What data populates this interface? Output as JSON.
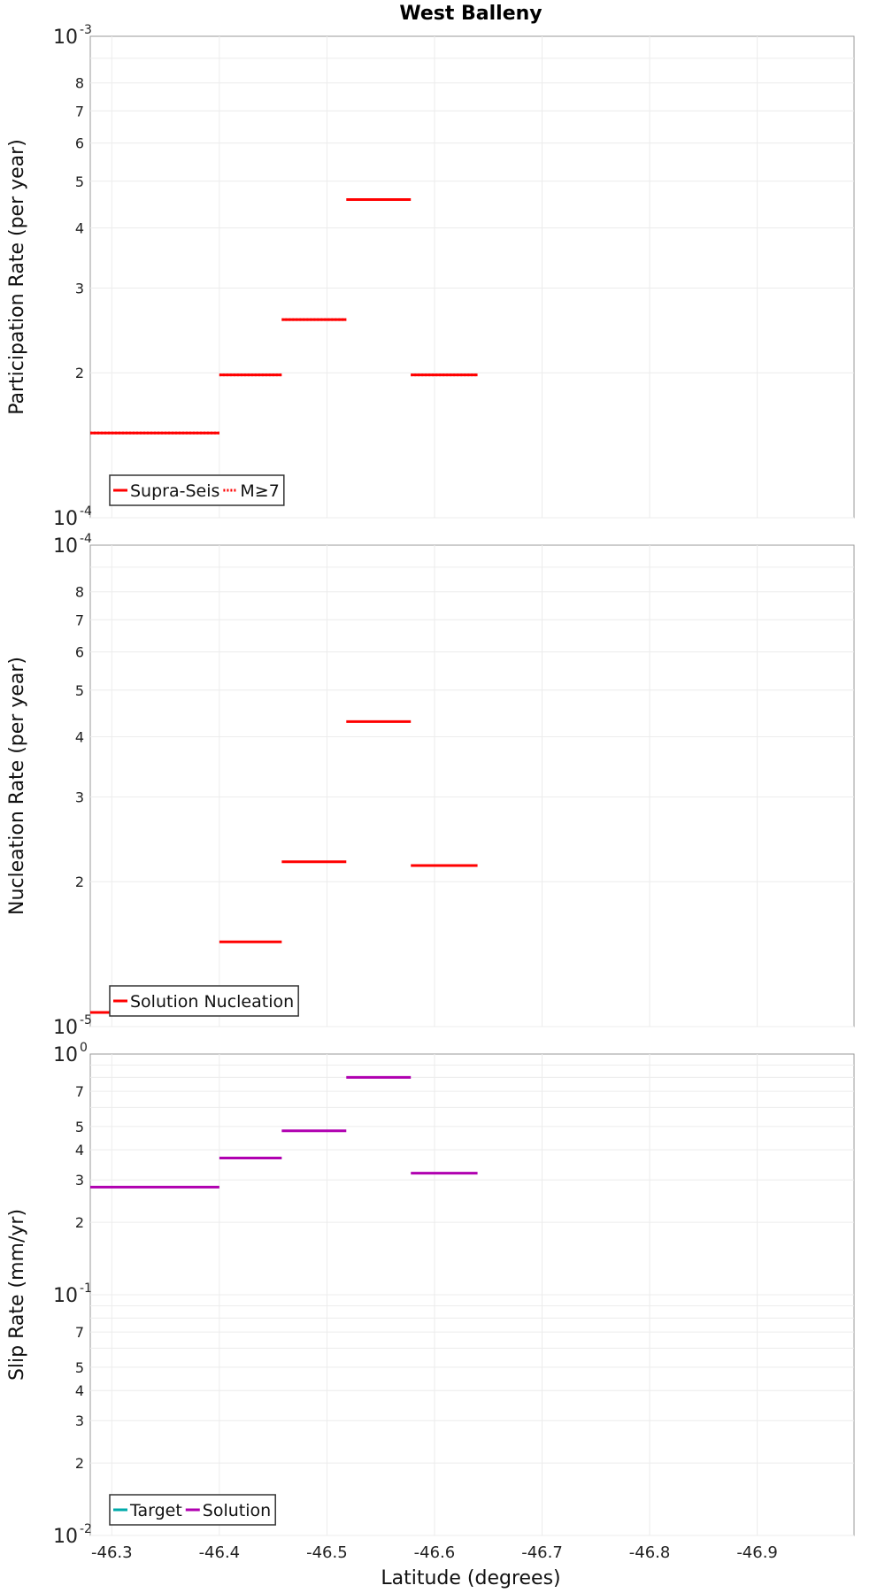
{
  "chart_data": {
    "title": "West Balleny",
    "xlabel": "Latitude (degrees)",
    "x_axis": {
      "range": [
        -46.28,
        -46.99
      ],
      "ticks": [
        -46.3,
        -46.4,
        -46.5,
        -46.6,
        -46.7,
        -46.8,
        -46.9
      ],
      "tick_labels": [
        "-46.3",
        "-46.4",
        "-46.5",
        "-46.6",
        "-46.7",
        "-46.8",
        "-46.9"
      ]
    },
    "panels": [
      {
        "id": "participation",
        "type": "line",
        "ylabel": "Participation Rate (per year)",
        "yscale": "log",
        "ylim": [
          0.0001,
          0.001
        ],
        "major_ticks": [
          {
            "base": "10",
            "exp": "-4"
          },
          {
            "base": "10",
            "exp": "-3"
          }
        ],
        "minor_tick_labels": [
          "2",
          "3",
          "4",
          "5",
          "6",
          "7",
          "8"
        ],
        "segments_x": [
          [
            -46.28,
            -46.4
          ],
          [
            -46.4,
            -46.458
          ],
          [
            -46.458,
            -46.518
          ],
          [
            -46.518,
            -46.578
          ],
          [
            -46.578,
            -46.64
          ]
        ],
        "series": [
          {
            "name": "Supra-Seis",
            "color": "#ff0000",
            "style": "solid",
            "values": [
              0.00015,
              0.000198,
              0.000258,
              0.000458,
              0.000198
            ]
          },
          {
            "name": "M≥7",
            "color": "#ff0000",
            "style": "dotted",
            "values": [
              0.00015,
              0.000198,
              0.000258,
              null,
              0.000198
            ]
          }
        ],
        "legend": [
          "Supra-Seis",
          "M≥7"
        ]
      },
      {
        "id": "nucleation",
        "type": "line",
        "ylabel": "Nucleation Rate (per year)",
        "yscale": "log",
        "ylim": [
          1e-05,
          0.0001
        ],
        "major_ticks": [
          {
            "base": "10",
            "exp": "-5"
          },
          {
            "base": "10",
            "exp": "-4"
          }
        ],
        "minor_tick_labels": [
          "2",
          "3",
          "4",
          "5",
          "6",
          "7",
          "8"
        ],
        "segments_x": [
          [
            -46.28,
            -46.4
          ],
          [
            -46.4,
            -46.458
          ],
          [
            -46.458,
            -46.518
          ],
          [
            -46.518,
            -46.578
          ],
          [
            -46.578,
            -46.64
          ]
        ],
        "series": [
          {
            "name": "Solution Nucleation",
            "color": "#ff0000",
            "style": "solid",
            "values": [
              1.07e-05,
              1.5e-05,
              2.2e-05,
              4.3e-05,
              2.16e-05
            ]
          }
        ],
        "legend": [
          "Solution Nucleation"
        ]
      },
      {
        "id": "slip",
        "type": "line",
        "ylabel": "Slip Rate (mm/yr)",
        "yscale": "log",
        "ylim": [
          0.01,
          1
        ],
        "major_ticks": [
          {
            "base": "10",
            "exp": "-2"
          },
          {
            "base": "10",
            "exp": "-1"
          },
          {
            "base": "10",
            "exp": "0"
          }
        ],
        "minor_tick_labels": [
          "2",
          "3",
          "4",
          "5",
          "7"
        ],
        "segments_x": [
          [
            -46.28,
            -46.4
          ],
          [
            -46.4,
            -46.458
          ],
          [
            -46.458,
            -46.518
          ],
          [
            -46.518,
            -46.578
          ],
          [
            -46.578,
            -46.64
          ]
        ],
        "series": [
          {
            "name": "Target",
            "color": "#00aaaa",
            "style": "solid",
            "values": [
              null,
              null,
              null,
              null,
              null
            ]
          },
          {
            "name": "Solution",
            "color": "#b000b0",
            "style": "solid",
            "values": [
              0.28,
              0.37,
              0.48,
              0.8,
              0.32
            ]
          }
        ],
        "legend": [
          "Target",
          "Solution"
        ]
      }
    ]
  }
}
